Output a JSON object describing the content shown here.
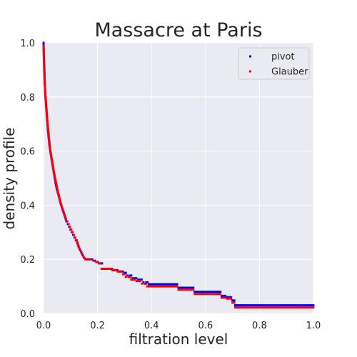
{
  "chart_data": {
    "type": "scatter",
    "title": "Massacre at Paris",
    "xlabel": "filtration level",
    "ylabel": "density profile",
    "xlim": [
      0.0,
      1.0
    ],
    "ylim": [
      0.0,
      1.0
    ],
    "xticks": [
      "0.0",
      "0.2",
      "0.4",
      "0.6",
      "0.8",
      "1.0"
    ],
    "yticks": [
      "0.0",
      "0.2",
      "0.4",
      "0.6",
      "0.8",
      "1.0"
    ],
    "grid": true,
    "legend_position": "top-right",
    "background_color": "#eaeaf2",
    "grid_color": "#ffffff",
    "series": [
      {
        "name": "pivot",
        "color": "#0000ff",
        "points": [
          [
            0.0,
            1.0
          ],
          [
            0.001,
            0.96
          ],
          [
            0.003,
            0.9
          ],
          [
            0.005,
            0.84
          ],
          [
            0.007,
            0.8
          ],
          [
            0.01,
            0.76
          ],
          [
            0.013,
            0.72
          ],
          [
            0.016,
            0.68
          ],
          [
            0.019,
            0.65
          ],
          [
            0.022,
            0.62
          ],
          [
            0.025,
            0.6
          ],
          [
            0.03,
            0.57
          ],
          [
            0.035,
            0.54
          ],
          [
            0.04,
            0.51
          ],
          [
            0.045,
            0.48
          ],
          [
            0.05,
            0.455
          ],
          [
            0.055,
            0.44
          ],
          [
            0.06,
            0.42
          ],
          [
            0.065,
            0.4
          ],
          [
            0.07,
            0.385
          ],
          [
            0.075,
            0.37
          ],
          [
            0.08,
            0.355
          ],
          [
            0.085,
            0.34
          ],
          [
            0.09,
            0.33
          ],
          [
            0.095,
            0.32
          ],
          [
            0.1,
            0.31
          ],
          [
            0.105,
            0.3
          ],
          [
            0.11,
            0.29
          ],
          [
            0.115,
            0.28
          ],
          [
            0.12,
            0.27
          ],
          [
            0.125,
            0.26
          ],
          [
            0.13,
            0.245
          ],
          [
            0.135,
            0.235
          ],
          [
            0.14,
            0.225
          ],
          [
            0.145,
            0.215
          ],
          [
            0.15,
            0.205
          ],
          [
            0.16,
            0.2
          ],
          [
            0.17,
            0.2
          ],
          [
            0.18,
            0.2
          ],
          [
            0.19,
            0.195
          ],
          [
            0.2,
            0.19
          ],
          [
            0.21,
            0.185
          ],
          [
            0.22,
            0.165
          ],
          [
            0.24,
            0.165
          ],
          [
            0.26,
            0.16
          ],
          [
            0.28,
            0.155
          ],
          [
            0.3,
            0.15
          ],
          [
            0.31,
            0.14
          ],
          [
            0.32,
            0.14
          ],
          [
            0.33,
            0.13
          ],
          [
            0.35,
            0.125
          ],
          [
            0.37,
            0.115
          ],
          [
            0.38,
            0.115
          ],
          [
            0.39,
            0.108
          ],
          [
            0.41,
            0.108
          ],
          [
            0.43,
            0.108
          ],
          [
            0.45,
            0.108
          ],
          [
            0.47,
            0.108
          ],
          [
            0.49,
            0.108
          ],
          [
            0.5,
            0.095
          ],
          [
            0.52,
            0.095
          ],
          [
            0.54,
            0.095
          ],
          [
            0.56,
            0.08
          ],
          [
            0.58,
            0.08
          ],
          [
            0.6,
            0.08
          ],
          [
            0.62,
            0.08
          ],
          [
            0.64,
            0.08
          ],
          [
            0.66,
            0.065
          ],
          [
            0.68,
            0.06
          ],
          [
            0.7,
            0.048
          ],
          [
            0.71,
            0.03
          ],
          [
            0.74,
            0.03
          ],
          [
            0.78,
            0.03
          ],
          [
            0.82,
            0.03
          ],
          [
            0.86,
            0.03
          ],
          [
            0.9,
            0.03
          ],
          [
            0.94,
            0.03
          ],
          [
            0.98,
            0.03
          ],
          [
            1.0,
            0.03
          ]
        ]
      },
      {
        "name": "Glauber",
        "color": "#ff0000",
        "points": [
          [
            0.0,
            0.99
          ],
          [
            0.001,
            0.95
          ],
          [
            0.002,
            0.91
          ],
          [
            0.004,
            0.86
          ],
          [
            0.006,
            0.82
          ],
          [
            0.009,
            0.78
          ],
          [
            0.012,
            0.74
          ],
          [
            0.015,
            0.7
          ],
          [
            0.018,
            0.67
          ],
          [
            0.021,
            0.64
          ],
          [
            0.024,
            0.61
          ],
          [
            0.028,
            0.585
          ],
          [
            0.033,
            0.555
          ],
          [
            0.038,
            0.525
          ],
          [
            0.043,
            0.5
          ],
          [
            0.048,
            0.475
          ],
          [
            0.053,
            0.45
          ],
          [
            0.058,
            0.43
          ],
          [
            0.063,
            0.41
          ],
          [
            0.068,
            0.395
          ],
          [
            0.073,
            0.38
          ],
          [
            0.078,
            0.365
          ],
          [
            0.083,
            0.35
          ],
          [
            0.088,
            0.34
          ],
          [
            0.093,
            0.33
          ],
          [
            0.098,
            0.32
          ],
          [
            0.103,
            0.31
          ],
          [
            0.108,
            0.3
          ],
          [
            0.113,
            0.29
          ],
          [
            0.118,
            0.28
          ],
          [
            0.123,
            0.27
          ],
          [
            0.128,
            0.255
          ],
          [
            0.133,
            0.24
          ],
          [
            0.138,
            0.23
          ],
          [
            0.143,
            0.22
          ],
          [
            0.148,
            0.21
          ],
          [
            0.155,
            0.2
          ],
          [
            0.165,
            0.2
          ],
          [
            0.175,
            0.2
          ],
          [
            0.185,
            0.195
          ],
          [
            0.195,
            0.19
          ],
          [
            0.205,
            0.185
          ],
          [
            0.215,
            0.165
          ],
          [
            0.235,
            0.165
          ],
          [
            0.255,
            0.16
          ],
          [
            0.275,
            0.155
          ],
          [
            0.295,
            0.145
          ],
          [
            0.305,
            0.135
          ],
          [
            0.315,
            0.135
          ],
          [
            0.325,
            0.125
          ],
          [
            0.345,
            0.12
          ],
          [
            0.365,
            0.11
          ],
          [
            0.375,
            0.11
          ],
          [
            0.385,
            0.1
          ],
          [
            0.405,
            0.1
          ],
          [
            0.425,
            0.1
          ],
          [
            0.445,
            0.1
          ],
          [
            0.465,
            0.1
          ],
          [
            0.485,
            0.1
          ],
          [
            0.5,
            0.088
          ],
          [
            0.52,
            0.088
          ],
          [
            0.54,
            0.088
          ],
          [
            0.56,
            0.072
          ],
          [
            0.58,
            0.072
          ],
          [
            0.6,
            0.072
          ],
          [
            0.62,
            0.072
          ],
          [
            0.64,
            0.072
          ],
          [
            0.66,
            0.058
          ],
          [
            0.68,
            0.055
          ],
          [
            0.7,
            0.04
          ],
          [
            0.71,
            0.022
          ],
          [
            0.74,
            0.022
          ],
          [
            0.78,
            0.022
          ],
          [
            0.82,
            0.022
          ],
          [
            0.86,
            0.022
          ],
          [
            0.9,
            0.022
          ],
          [
            0.94,
            0.022
          ],
          [
            0.98,
            0.022
          ],
          [
            1.0,
            0.022
          ]
        ]
      }
    ]
  }
}
